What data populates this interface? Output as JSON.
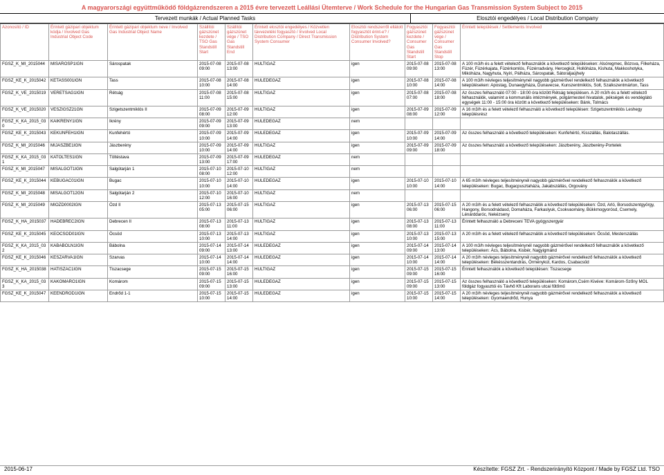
{
  "colors": {
    "accent": "#d9534f",
    "border": "#999999",
    "text": "#000000",
    "background": "#ffffff"
  },
  "title": "A magyarországi együttműködő földgázrendszeren a 2015 évre tervezett Leállási Ütemterve / Work Schedule for the Hungarian Gas Transmission System Subject to 2015",
  "subheader": {
    "left": "Tervezett munkák / Actual Planned Tasks",
    "right": "Elosztói engedélyes / Local Distribution Company"
  },
  "columns": {
    "id": "Azonosító / ID",
    "code": "Érintett gázipari objektum kódja / Involved Gas Industrial Object Code",
    "name": "Érintett gázipari objektum neve / Involved Gas Industrial Object Name",
    "tsoStart": "Szállítói gázszünet kezdete / TSO Gas Standstill Start",
    "tsoEnd": "Szállítói gázszünet vége / TSO Gas Standstill End",
    "consumer": "Érintett elosztói engedélyes / Közvetlen távvezetéki fogyasztó / Involved Local Distribution Company / Direct Transmission System Consumer",
    "involved": "Elosztói rendszerről ellátott fogyasztót érint-e? / Distribution System Consumer Involved?",
    "cgStart": "Fogyasztói gázszünet kezdete / Consumer Gas Standstill Start",
    "cgEnd": "Fogyasztói gázszünet vége / Consumer Gas Standstill Stop",
    "settlements": "Érintett települések / Settlements Involved"
  },
  "rows": [
    {
      "id": "FGSZ_K_MI_2015044",
      "code": "MISAROSP1IGN",
      "name": "Sárospatak",
      "tsoStart": "2015-07-08 09:00",
      "tsoEnd": "2015-07-08 13:00",
      "consumer": "HULTIGAZ",
      "involved": "igen",
      "cgStart": "2015-07-08 09:00",
      "cgEnd": "2015-07-08 13:00",
      "settlements": "A 100 m3/h és a felett vételező felhasználók a következő településeken: Alsóregmec, Bózsva, Filkeháza, Füzér, Füzérkajata, Füzérkomlós, Füzérradvány, Hercegkút, Hollóháza, Kishuta, Makkoshotyka, Mikóháza, Nagyhuta, Nyíri, Pálháza, Sárospatak, Sátoraljaújhely"
    },
    {
      "id": "FGSZ_KE_K_2015042",
      "code": "KETASS001IGN",
      "name": "Tass",
      "tsoStart": "2015-07-08 10:00",
      "tsoEnd": "2015-07-08 14:00",
      "consumer": "HULEDEGAZ",
      "involved": "igen",
      "cgStart": "2015-07-08 10:00",
      "cgEnd": "2015-07-08 14:00",
      "settlements": "A 100 m3/h névleges teljesítménynél nagyobb gázmérővel rendelkező felhasználók a következő településeken: Apostag, Dunaegyháza, Dunavecse, Kunszentmiklós, Solt, Szalkszentmárton, Tass"
    },
    {
      "id": "FGSZ_K_VE_2015019",
      "code": "VERETSAG1IGN",
      "name": "Rétság",
      "tsoStart": "2015-07-08 11:00",
      "tsoEnd": "2015-07-08 15:00",
      "consumer": "HULTIGAZ",
      "involved": "igen",
      "cgStart": "2015-07-08 07:00",
      "cgEnd": "2015-07-08 18:00",
      "settlements": "Az összes felhasználó 07:00 - 18:00 óra között Rétság településen. A 20 m3/h és a felett vételező felhasználók, valamint a kommunális intézmények, polgármesteri hivatalok, pékségek és vendéglátó egységek 11:00 - 15:00 óra között a következő településeken: Bánk, Tolmács"
    },
    {
      "id": "FGSZ_K_VE_2015020",
      "code": "VESZIGSZ21GN",
      "name": "Szigetszentmiklós II",
      "tsoStart": "2015-07-09 08:00",
      "tsoEnd": "2015-07-09 12:00",
      "consumer": "HULTIGAZ",
      "involved": "igen",
      "cgStart": "2015-07-09 08:00",
      "cgEnd": "2015-07-09 12:00",
      "settlements": "A 16 m3/h és a felett vételező felhasználó a következő településen: Szigetszentmiklós Leshegy településrész"
    },
    {
      "id": "FGSZ_K_KA_2015_030",
      "code": "KAIKRENY1IGN",
      "name": "Ikrény",
      "tsoStart": "2015-07-09 09:00",
      "tsoEnd": "2015-07-09 13:00",
      "consumer": "HULEDEGAZ",
      "involved": "nem",
      "cgStart": "",
      "cgEnd": "",
      "settlements": ""
    },
    {
      "id": "FGSZ_KE_K_2015043",
      "code": "KEKUNFEH1IGN",
      "name": "Kunfehértó",
      "tsoStart": "2015-07-09 10:00",
      "tsoEnd": "2015-07-09 14:00",
      "consumer": "HULEDEGAZ",
      "involved": "igen",
      "cgStart": "2015-07-09 10:00",
      "cgEnd": "2015-07-09 14:00",
      "settlements": "Az összes felhasználó a következő településeken: Kunfehértó, Kisszállás, Balotaszállás."
    },
    {
      "id": "FGSZ_K_MI_2015046",
      "code": "MIJASZBE1IGN",
      "name": "Jászberény",
      "tsoStart": "2015-07-09 10:00",
      "tsoEnd": "2015-07-09 14:00",
      "consumer": "HULTIGAZ",
      "involved": "igen",
      "cgStart": "2015-07-09 09:00",
      "cgEnd": "2015-07-09 18:00",
      "settlements": "Az összes felhasználó a következő településeken: Jászberény, Jászberény-Portelek"
    },
    {
      "id": "FGSZ_K_KA_2015_031",
      "code": "KATOLTES1IGN",
      "name": "Töltéstava",
      "tsoStart": "2015-07-09 13:00",
      "tsoEnd": "2015-07-09 17:00",
      "consumer": "HULEDEGAZ",
      "involved": "nem",
      "cgStart": "",
      "cgEnd": "",
      "settlements": ""
    },
    {
      "id": "FGSZ_K_MI_2015047",
      "code": "MISALGOT1IGN",
      "name": "Salgótarján 1",
      "tsoStart": "2015-07-10 08:00",
      "tsoEnd": "2015-07-10 12:00",
      "consumer": "HULTIGAZ",
      "involved": "nem",
      "cgStart": "",
      "cgEnd": "",
      "settlements": ""
    },
    {
      "id": "FGSZ_KE_K_2015044",
      "code": "KEBUGAC01IGN",
      "name": "Bugac",
      "tsoStart": "2015-07-10 10:00",
      "tsoEnd": "2015-07-10 14:00",
      "consumer": "HULEDEGAZ",
      "involved": "igen",
      "cgStart": "2015-07-10 10:00",
      "cgEnd": "2015-07-10 14:00",
      "settlements": "A 65 m3/h névleges teljesítménynél nagyobb gázmérővel rendelkező felhasználók a következő településeken: Bugac, Bugacpusztaháza, Jakabszállás, Orgovány"
    },
    {
      "id": "FGSZ_K_MI_2015048",
      "code": "MISALGOT12GN",
      "name": "Salgótarján 2",
      "tsoStart": "2015-07-10 12:00",
      "tsoEnd": "2015-07-10 16:00",
      "consumer": "HULTIGAZ",
      "involved": "nem",
      "cgStart": "",
      "cgEnd": "",
      "settlements": ""
    },
    {
      "id": "FGSZ_K_MI_2015049",
      "code": "MIOZD0002IGN",
      "name": "Ózd II",
      "tsoStart": "2015-07-13 05:00",
      "tsoEnd": "2015-07-15 06:00",
      "consumer": "HULTIGAZ",
      "involved": "igen",
      "cgStart": "2015-07-13 06:00",
      "cgEnd": "2015-07-15 06:00",
      "settlements": "A 20 m3/h és a felett vételező felhasználók a következő településeken: Ózd, Arló, Borsodszentgyörgy, Hangony, Borsodnádasd, Domaháza, Farkaslyuk, Csokvaomány, Bükkmogyorósd, Csernely, Lénárddaróc, Nekézseny"
    },
    {
      "id": "FGSZ_K_HA_2015037",
      "code": "HADEBREC2IGN",
      "name": "Debrecen II",
      "tsoStart": "2015-07-13 08:00",
      "tsoEnd": "2015-07-13 11:00",
      "consumer": "HULTIGAZ",
      "involved": "igen",
      "cgStart": "2015-07-13 08:00",
      "cgEnd": "2015-07-13 11:00",
      "settlements": "Érintett felhasználó a Debreceni TEVA gyógyszergyár"
    },
    {
      "id": "FGSZ_KE_K_2015045",
      "code": "KEOCSOD01IGN",
      "name": "Öcsöd",
      "tsoStart": "2015-07-13 10:00",
      "tsoEnd": "2015-07-13 14:00",
      "consumer": "HULTIGAZ",
      "involved": "igen",
      "cgStart": "2015-07-13 10:00",
      "cgEnd": "2015-07-13 15:00",
      "settlements": "A 20 m3/h és a felett vételező felhasználók a következő településeken: Öcsöd, Mesterszállás"
    },
    {
      "id": "FGSZ_K_KA_2015_032",
      "code": "KABABOLN1IGN",
      "name": "Bábolna",
      "tsoStart": "2015-07-14 09:00",
      "tsoEnd": "2015-07-14 13:00",
      "consumer": "HULEDEGAZ",
      "involved": "igen",
      "cgStart": "2015-07-14 09:00",
      "cgEnd": "2015-07-14 13:00",
      "settlements": "A 100 m3/h névleges teljesítménynél nagyobb gázmérővel rendelkező felhasználók a következő településeken: Ács, Bábolna, Kisbér, Nagyigmánd"
    },
    {
      "id": "FGSZ_KE_K_2015046",
      "code": "KESZARVA1IGN",
      "name": "Szarvas",
      "tsoStart": "2015-07-14 10:00",
      "tsoEnd": "2015-07-14 14:00",
      "consumer": "HULEDEGAZ",
      "involved": "igen",
      "cgStart": "2015-07-14 10:00",
      "cgEnd": "2015-07-14 14:00",
      "settlements": "A 20 m3/h névleges teljesítménynél nagyobb gázmérővel rendelkező felhasználók a következő településeken: Békésszentandrás, Örménykút, Kardos, Csabacsűd"
    },
    {
      "id": "FGSZ_K_HA_2015038",
      "code": "HATISZAC1IGN",
      "name": "Tiszacsege",
      "tsoStart": "2015-07-15 09:00",
      "tsoEnd": "2015-07-15 16:00",
      "consumer": "HULTIGAZ",
      "involved": "igen",
      "cgStart": "2015-07-15 09:00",
      "cgEnd": "2015-07-15 16:00",
      "settlements": "Érintett felhasználók a következő településen: Tiszacsege"
    },
    {
      "id": "FGSZ_K_KA_2015_033",
      "code": "KAKOMARO1IGN",
      "name": "Komárom",
      "tsoStart": "2015-07-15 09:00",
      "tsoEnd": "2015-07-15 13:00",
      "consumer": "HULEDEGAZ",
      "involved": "igen",
      "cgStart": "2015-07-15 09:00",
      "cgEnd": "2015-07-15 13:00",
      "settlements": "Az összes felhasználó a következő településeken: Komárom,Csém Kivéve: Komárom-Szőny MOL földgáz fogyasztói és Távhő Kft Laborans utcai fűtőmű"
    },
    {
      "id": "FGSZ_KE_K_2015047",
      "code": "KEENDROD1IGN",
      "name": "Endrőd 1-1",
      "tsoStart": "2015-07-15 10:00",
      "tsoEnd": "2015-07-15 14:00",
      "consumer": "HULEDEGAZ",
      "involved": "igen",
      "cgStart": "2015-07-15 10:00",
      "cgEnd": "2015-07-15 14:00",
      "settlements": "A 20 m3/h névleges teljesítménynél nagyobb gázmérővel rendelkező felhasználók a következő településeken: Gyomaendrőd, Hunya"
    }
  ],
  "footer": {
    "left": "2015-06-17",
    "right": "Készítette: FGSZ Zrt. - Rendszerirányító Központ / Made by FGSZ Ltd. TSO"
  }
}
